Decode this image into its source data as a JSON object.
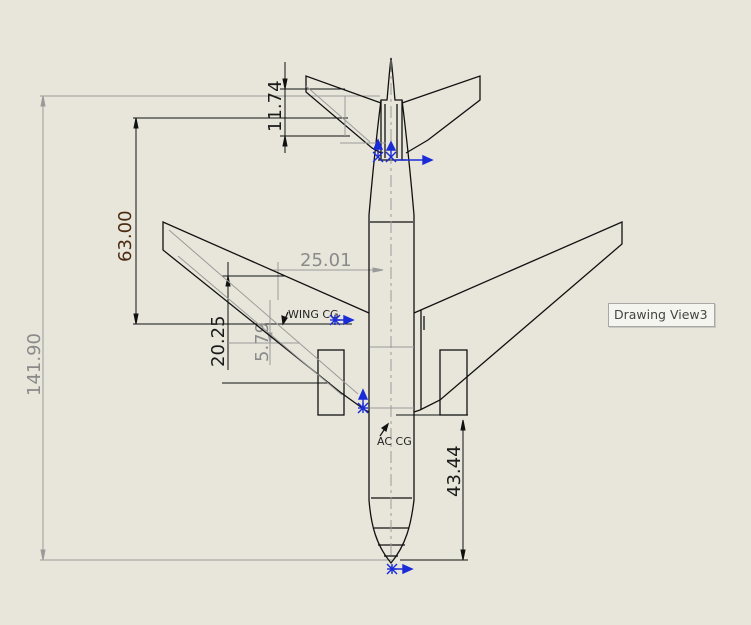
{
  "drawing": {
    "view_tooltip": "Drawing View3",
    "dimensions": {
      "overall_length": "141.90",
      "wing_span_fore_aft": "63.00",
      "tail_root": "11.74",
      "wing_cg_offset": "25.01",
      "wing_cg_chord": "20.25",
      "wing_cg_small": "5.79",
      "ac_cg_from_nose": "43.44"
    },
    "notes": {
      "wing_cg": "WING CG",
      "ac_cg": "AC CG"
    },
    "colors": {
      "background": "#e8e6da",
      "line": "#111111",
      "dim_dark": "#1a1a1a",
      "dim_grey": "#8a8a8a",
      "cg_marker": "#1a2bd8"
    }
  }
}
